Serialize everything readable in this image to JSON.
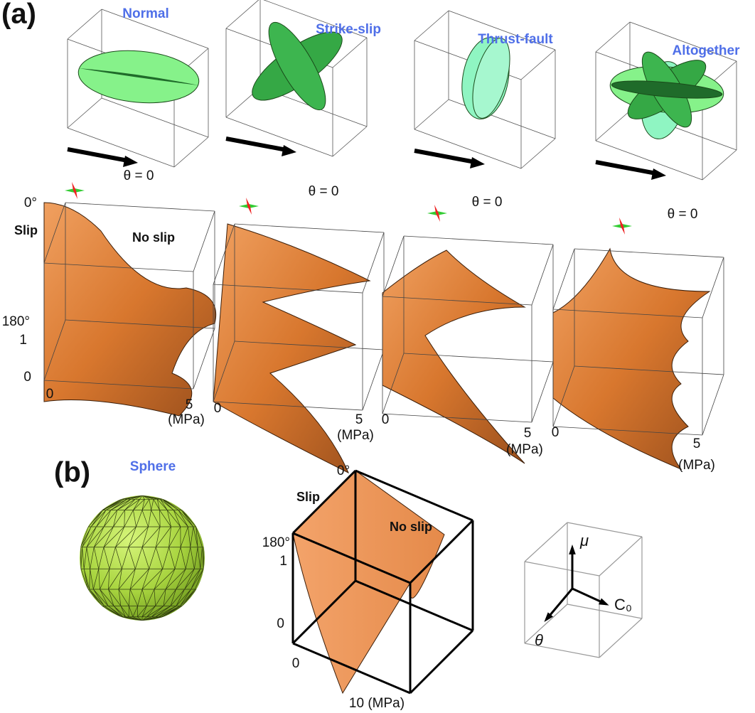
{
  "panel_a": {
    "label": "(a)",
    "mechanisms": [
      {
        "title": "Normal",
        "angle_label": "θ = 0"
      },
      {
        "title": "Strike-slip",
        "angle_label": "θ = 0"
      },
      {
        "title": "Thrust-fault",
        "angle_label": "θ = 0"
      },
      {
        "title": "Altogether",
        "angle_label": "θ = 0"
      }
    ],
    "plots": [
      {
        "y_top": "0°",
        "slip": "Slip",
        "no_slip": "No slip",
        "y_mid": "180°",
        "z_top": "1",
        "z_bottom": "0",
        "x_start": "0",
        "x_end": "5",
        "x_unit": "(MPa)"
      },
      {
        "x_start": "0",
        "x_end": "5",
        "x_unit": "(MPa)"
      },
      {
        "x_start": "0",
        "x_end": "5",
        "x_unit": "(MPa)"
      },
      {
        "x_start": "0",
        "x_end": "5",
        "x_unit": "(MPa)"
      }
    ]
  },
  "panel_b": {
    "label": "(b)",
    "sphere_title": "Sphere",
    "plot": {
      "y_top": "0°",
      "slip": "Slip",
      "no_slip": "No slip",
      "y_mid": "180°",
      "z_top": "1",
      "z_bottom": "0",
      "x_start": "0",
      "x_end": "10 (MPa)"
    },
    "axes": {
      "mu": "μ",
      "c0": "C₀",
      "theta": "θ"
    }
  }
}
